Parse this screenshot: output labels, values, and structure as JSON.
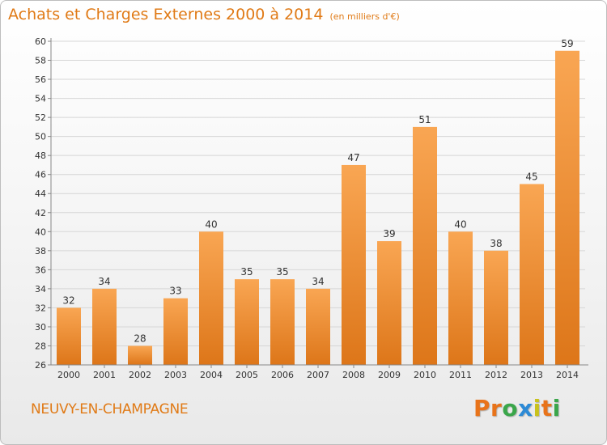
{
  "chart_data": {
    "type": "bar",
    "title": "Achats et Charges Externes 2000 à 2014",
    "subtitle": "(en milliers d'€)",
    "categories": [
      "2000",
      "2001",
      "2002",
      "2003",
      "2004",
      "2005",
      "2006",
      "2007",
      "2008",
      "2009",
      "2010",
      "2011",
      "2012",
      "2013",
      "2014"
    ],
    "values": [
      32,
      34,
      28,
      33,
      40,
      35,
      35,
      34,
      47,
      39,
      51,
      40,
      38,
      45,
      59
    ],
    "ylim": [
      26,
      60
    ],
    "ytick_step": 2,
    "grid": true,
    "xlabel": "",
    "ylabel": ""
  },
  "footer": {
    "commune": "NEUVY-EN-CHAMPAGNE",
    "logo_text": "Proxiti"
  },
  "colors": {
    "bar_light": "#f9a653",
    "bar_dark": "#dd7619",
    "title": "#e07a16",
    "logo": [
      "#e8731a",
      "#e8731a",
      "#3aa64a",
      "#2c8ad6",
      "#c9c21c",
      "#e8731a",
      "#3aa64a"
    ]
  }
}
